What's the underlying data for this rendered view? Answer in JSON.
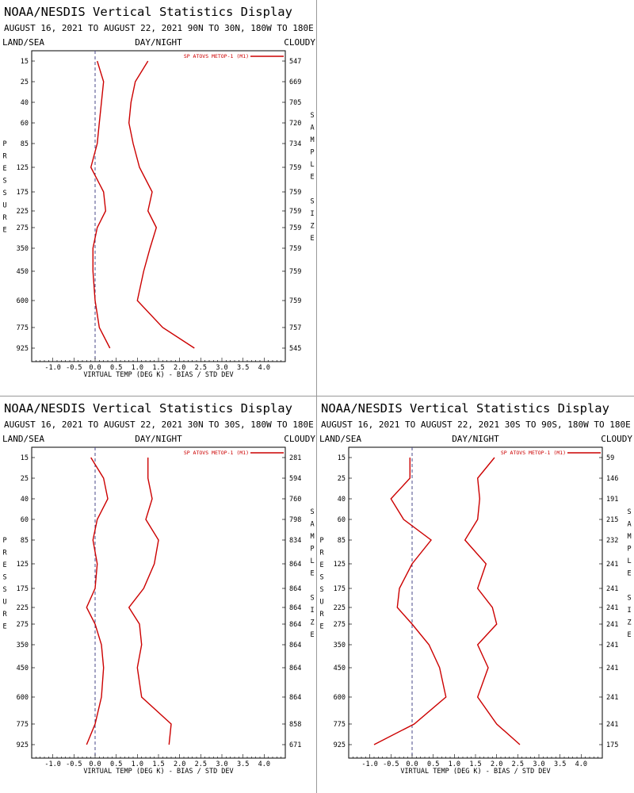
{
  "chart_data": [
    {
      "type": "line",
      "title": "NOAA/NESDIS Vertical Statistics Display",
      "subtitle": "AUGUST 16, 2021 TO AUGUST 22, 2021  90N TO 30N, 180W TO 180E",
      "label_left": "LAND/SEA",
      "label_center": "DAY/NIGHT",
      "label_right": "CLOUDY",
      "ylabel": "PRESSURE",
      "y2label": "SAMPLE SIZE",
      "xlabel": "VIRTUAL TEMP (DEG K) - BIAS / STD DEV",
      "xlim": [
        -1.5,
        4.5
      ],
      "x_ticks": [
        "-1.0",
        "-0.5",
        "0.0",
        "0.5",
        "1.0",
        "1.5",
        "2.0",
        "2.5",
        "3.0",
        "3.5",
        "4.0"
      ],
      "pressure_levels": [
        "15",
        "25",
        "40",
        "60",
        "85",
        "125",
        "175",
        "225",
        "275",
        "350",
        "450",
        "600",
        "775",
        "925"
      ],
      "sample_sizes": [
        "547",
        "669",
        "705",
        "720",
        "734",
        "759",
        "759",
        "759",
        "759",
        "759",
        "759",
        "759",
        "757",
        "545"
      ],
      "legend": "SP ATOVS METOP-1 (M1)",
      "series": [
        {
          "name": "bias",
          "values": [
            0.05,
            0.2,
            0.15,
            0.1,
            0.05,
            -0.1,
            0.2,
            0.25,
            0.05,
            -0.05,
            -0.05,
            0.0,
            0.1,
            0.35
          ]
        },
        {
          "name": "std_dev",
          "values": [
            1.25,
            0.95,
            0.85,
            0.8,
            0.9,
            1.05,
            1.35,
            1.25,
            1.45,
            1.3,
            1.15,
            1.0,
            1.6,
            2.35
          ]
        }
      ],
      "colors": {
        "line": "#cc0000",
        "zero_line": "#4a4a8a"
      }
    },
    {
      "type": "line",
      "title": "NOAA/NESDIS Vertical Statistics Display",
      "subtitle": "AUGUST 16, 2021 TO AUGUST 22, 2021  30N TO 30S, 180W TO 180E",
      "label_left": "LAND/SEA",
      "label_center": "DAY/NIGHT",
      "label_right": "CLOUDY",
      "ylabel": "PRESSURE",
      "y2label": "SAMPLE SIZE",
      "xlabel": "VIRTUAL TEMP (DEG K) - BIAS / STD DEV",
      "xlim": [
        -1.5,
        4.5
      ],
      "x_ticks": [
        "-1.0",
        "-0.5",
        "0.0",
        "0.5",
        "1.0",
        "1.5",
        "2.0",
        "2.5",
        "3.0",
        "3.5",
        "4.0"
      ],
      "pressure_levels": [
        "15",
        "25",
        "40",
        "60",
        "85",
        "125",
        "175",
        "225",
        "275",
        "350",
        "450",
        "600",
        "775",
        "925"
      ],
      "sample_sizes": [
        "281",
        "594",
        "760",
        "798",
        "834",
        "864",
        "864",
        "864",
        "864",
        "864",
        "864",
        "864",
        "858",
        "671"
      ],
      "legend": "SP ATOVS METOP-1 (M1)",
      "series": [
        {
          "name": "bias",
          "values": [
            -0.1,
            0.2,
            0.3,
            0.05,
            -0.05,
            0.05,
            0.0,
            -0.2,
            0.0,
            0.15,
            0.2,
            0.15,
            0.0,
            -0.2
          ]
        },
        {
          "name": "std_dev",
          "values": [
            1.25,
            1.25,
            1.35,
            1.2,
            1.5,
            1.4,
            1.15,
            0.8,
            1.05,
            1.1,
            1.0,
            1.1,
            1.8,
            1.75
          ]
        }
      ],
      "colors": {
        "line": "#cc0000",
        "zero_line": "#4a4a8a"
      }
    },
    {
      "type": "line",
      "title": "NOAA/NESDIS Vertical Statistics Display",
      "subtitle": "AUGUST 16, 2021 TO AUGUST 22, 2021  30S TO 90S, 180W TO 180E",
      "label_left": "LAND/SEA",
      "label_center": "DAY/NIGHT",
      "label_right": "CLOUDY",
      "ylabel": "PRESSURE",
      "y2label": "SAMPLE SIZE",
      "xlabel": "VIRTUAL TEMP (DEG K) - BIAS / STD DEV",
      "xlim": [
        -1.5,
        4.5
      ],
      "x_ticks": [
        "-1.0",
        "-0.5",
        "0.0",
        "0.5",
        "1.0",
        "1.5",
        "2.0",
        "2.5",
        "3.0",
        "3.5",
        "4.0"
      ],
      "pressure_levels": [
        "15",
        "25",
        "40",
        "60",
        "85",
        "125",
        "175",
        "225",
        "275",
        "350",
        "450",
        "600",
        "775",
        "925"
      ],
      "sample_sizes": [
        "59",
        "146",
        "191",
        "215",
        "232",
        "241",
        "241",
        "241",
        "241",
        "241",
        "241",
        "241",
        "241",
        "175"
      ],
      "legend": "SP ATOVS METOP-1 (M1)",
      "series": [
        {
          "name": "bias",
          "values": [
            -0.05,
            -0.05,
            -0.5,
            -0.2,
            0.45,
            0.0,
            -0.3,
            -0.35,
            0.0,
            0.4,
            0.65,
            0.8,
            0.05,
            -0.9
          ]
        },
        {
          "name": "std_dev",
          "values": [
            1.95,
            1.55,
            1.6,
            1.55,
            1.25,
            1.75,
            1.55,
            1.9,
            2.0,
            1.55,
            1.8,
            1.55,
            2.0,
            2.55
          ]
        }
      ],
      "colors": {
        "line": "#cc0000",
        "zero_line": "#4a4a8a"
      }
    }
  ]
}
